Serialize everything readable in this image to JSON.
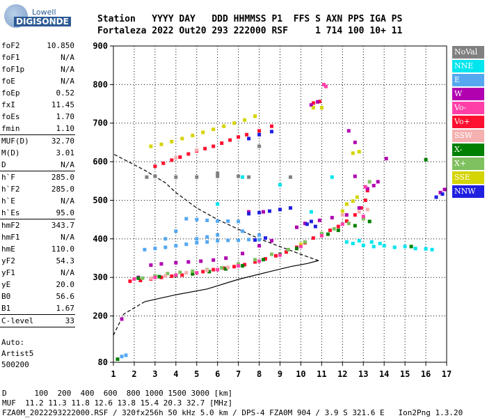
{
  "logo": {
    "line1": "Lowell",
    "line2": "DIGISONDE"
  },
  "header": {
    "row1": "Station   YYYY DAY   DDD HHMMSS P1  FFS S AXN PPS IGA PS",
    "row2": "Fortaleza 2022 Out20 293 222000 RSF     1 714 100 10+ 11"
  },
  "parameters": [
    {
      "k": "foF2",
      "v": "10.850"
    },
    {
      "k": "foF1",
      "v": "N/A"
    },
    {
      "k": "foF1p",
      "v": "N/A"
    },
    {
      "k": "foE",
      "v": "N/A"
    },
    {
      "k": "foEp",
      "v": "0.52"
    },
    {
      "k": "fxI",
      "v": "11.45"
    },
    {
      "k": "foEs",
      "v": "1.70"
    },
    {
      "k": "fmin",
      "v": "1.10",
      "sep": true
    },
    {
      "k": "MUF(D)",
      "v": "32.70"
    },
    {
      "k": "M(D)",
      "v": "3.01"
    },
    {
      "k": "D",
      "v": "N/A",
      "sep": true
    },
    {
      "k": "h`F",
      "v": "285.0"
    },
    {
      "k": "h`F2",
      "v": "285.0"
    },
    {
      "k": "h`E",
      "v": "N/A"
    },
    {
      "k": "h`Es",
      "v": "95.0",
      "sep": true
    },
    {
      "k": "hmF2",
      "v": "343.7"
    },
    {
      "k": "hmF1",
      "v": "N/A"
    },
    {
      "k": "hmE",
      "v": "110.0"
    },
    {
      "k": "yF2",
      "v": "54.3"
    },
    {
      "k": "yF1",
      "v": "N/A"
    },
    {
      "k": "yE",
      "v": "20.0"
    },
    {
      "k": "B0",
      "v": "56.6"
    },
    {
      "k": "B1",
      "v": "1.67",
      "sep": true
    },
    {
      "k": "C-level",
      "v": "33",
      "sep": true
    }
  ],
  "auto": {
    "line1": "Auto:",
    "line2": "Artist5",
    "line3": "500200"
  },
  "legend": [
    {
      "label": "NoVal",
      "bg": "#808080",
      "fg": "#ffffff"
    },
    {
      "label": "NNE",
      "bg": "#00e5ee",
      "fg": "#ffffff"
    },
    {
      "label": "E",
      "bg": "#55a8f0",
      "fg": "#ffffff"
    },
    {
      "label": "W",
      "bg": "#b000b0",
      "fg": "#ffffff"
    },
    {
      "label": "Vo-",
      "bg": "#ff3fa8",
      "fg": "#ffffff"
    },
    {
      "label": "Vo+",
      "bg": "#ff1030",
      "fg": "#ffffff"
    },
    {
      "label": "SSW",
      "bg": "#f5b0b0",
      "fg": "#ffffff"
    },
    {
      "label": "X-",
      "bg": "#008000",
      "fg": "#ffffff"
    },
    {
      "label": "X+",
      "bg": "#7fc060",
      "fg": "#ffffff"
    },
    {
      "label": "SSE",
      "bg": "#d4d400",
      "fg": "#ffffff"
    },
    {
      "label": "NNW",
      "bg": "#2020e0",
      "fg": "#ffffff"
    }
  ],
  "footer": {
    "line1": "D      100  200  400  600  800 1000 1500 3000 [km]",
    "line2": "MUF  11.2 11.3 11.8 12.6 13.8 15.4 20.3 32.7 [MHz]",
    "line3": "FZA0M_2022293222000.RSF / 320fx256h 50 kHz 5.0 km / DPS-4 FZA0M 904 / 3.9 S 321.6 E   Ion2Png 1.3.20"
  },
  "chart_data": {
    "type": "scatter",
    "xlim": [
      1,
      17
    ],
    "ylim": [
      80,
      900
    ],
    "xticks": [
      1,
      2,
      3,
      4,
      5,
      6,
      7,
      8,
      9,
      10,
      11,
      12,
      13,
      14,
      15,
      16,
      17
    ],
    "yticks": [
      80,
      200,
      300,
      400,
      500,
      600,
      700,
      800,
      900
    ],
    "xlabel": "",
    "ylabel": "",
    "profile_curve": [
      [
        0.5,
        150
      ],
      [
        1.5,
        205
      ],
      [
        2.5,
        237
      ],
      [
        4,
        255
      ],
      [
        5.5,
        270
      ],
      [
        7,
        295
      ],
      [
        8.5,
        315
      ],
      [
        9.5,
        328
      ],
      [
        10.3,
        336
      ],
      [
        10.85,
        343.7
      ],
      [
        10.5,
        350
      ],
      [
        10,
        360
      ],
      [
        9,
        380
      ],
      [
        8,
        400
      ],
      [
        7,
        425
      ],
      [
        6,
        450
      ],
      [
        5,
        480
      ],
      [
        4,
        520
      ],
      [
        3.5,
        545
      ],
      [
        2.5,
        578
      ],
      [
        1,
        620
      ]
    ],
    "series": [
      {
        "color": "#ff1030",
        "points": [
          [
            1.8,
            290
          ],
          [
            2.3,
            292
          ],
          [
            2.8,
            296
          ],
          [
            3.3,
            300
          ],
          [
            3.8,
            303
          ],
          [
            4.3,
            306
          ],
          [
            4.8,
            310
          ],
          [
            5.3,
            315
          ],
          [
            5.8,
            320
          ],
          [
            6.3,
            324
          ],
          [
            6.8,
            328
          ],
          [
            7.3,
            333
          ],
          [
            7.8,
            340
          ],
          [
            8.3,
            348
          ],
          [
            8.8,
            356
          ],
          [
            9.3,
            366
          ],
          [
            9.8,
            378
          ],
          [
            10.2,
            390
          ],
          [
            10.6,
            402
          ],
          [
            11.0,
            412
          ],
          [
            11.4,
            422
          ],
          [
            11.8,
            432
          ],
          [
            12.2,
            446
          ],
          [
            12.6,
            462
          ],
          [
            12.9,
            480
          ],
          [
            13.1,
            500
          ],
          [
            13.2,
            525
          ],
          [
            3.0,
            588
          ],
          [
            3.4,
            596
          ],
          [
            3.8,
            604
          ],
          [
            4.2,
            612
          ],
          [
            4.6,
            620
          ],
          [
            5.0,
            628
          ],
          [
            5.4,
            634
          ],
          [
            5.8,
            640
          ],
          [
            6.2,
            648
          ],
          [
            6.6,
            656
          ],
          [
            7.0,
            664
          ],
          [
            7.4,
            670
          ],
          [
            8.0,
            680
          ],
          [
            8.6,
            692
          ],
          [
            10.6,
            752
          ],
          [
            10.9,
            756
          ]
        ]
      },
      {
        "color": "#b000b0",
        "points": [
          [
            1.4,
            192
          ],
          [
            2.2,
            300
          ],
          [
            2.8,
            332
          ],
          [
            3.3,
            335
          ],
          [
            4.0,
            338
          ],
          [
            4.6,
            340
          ],
          [
            5.2,
            342
          ],
          [
            5.8,
            345
          ],
          [
            6.4,
            350
          ],
          [
            7.2,
            362
          ],
          [
            8.0,
            382
          ],
          [
            8.6,
            395
          ],
          [
            9.8,
            430
          ],
          [
            10.2,
            440
          ],
          [
            10.9,
            448
          ],
          [
            11.5,
            455
          ],
          [
            12.2,
            462
          ],
          [
            12.8,
            480
          ],
          [
            13.2,
            530
          ],
          [
            13.5,
            538
          ],
          [
            13.7,
            548
          ],
          [
            12.6,
            562
          ],
          [
            14.1,
            608
          ],
          [
            16.7,
            520
          ],
          [
            16.9,
            528
          ],
          [
            10.5,
            747
          ],
          [
            10.8,
            755
          ],
          [
            12.3,
            680
          ],
          [
            12.6,
            650
          ],
          [
            7.5,
            470
          ],
          [
            8.2,
            470
          ]
        ]
      },
      {
        "color": "#55a8f0",
        "points": [
          [
            2.5,
            372
          ],
          [
            3.0,
            375
          ],
          [
            3.5,
            378
          ],
          [
            4.0,
            382
          ],
          [
            4.5,
            386
          ],
          [
            5.0,
            390
          ],
          [
            5.5,
            392
          ],
          [
            6.0,
            395
          ],
          [
            6.5,
            396
          ],
          [
            7.0,
            396
          ],
          [
            7.5,
            398
          ],
          [
            8.0,
            398
          ],
          [
            4.5,
            452
          ],
          [
            5.0,
            450
          ],
          [
            5.5,
            448
          ],
          [
            6.0,
            446
          ],
          [
            6.5,
            446
          ],
          [
            7.0,
            445
          ],
          [
            5.0,
            400
          ],
          [
            5.5,
            405
          ],
          [
            6.0,
            410
          ],
          [
            7.2,
            420
          ],
          [
            1.4,
            95
          ],
          [
            1.6,
            98
          ],
          [
            8.0,
            410
          ],
          [
            4.0,
            420
          ],
          [
            3.5,
            400
          ]
        ]
      },
      {
        "color": "#00e5ee",
        "points": [
          [
            12.5,
            388
          ],
          [
            13.0,
            383
          ],
          [
            13.5,
            380
          ],
          [
            14.0,
            382
          ],
          [
            14.5,
            378
          ],
          [
            15.0,
            380
          ],
          [
            15.5,
            375
          ],
          [
            16.0,
            374
          ],
          [
            16.3,
            372
          ],
          [
            12.8,
            395
          ],
          [
            13.4,
            392
          ],
          [
            13.8,
            388
          ],
          [
            12.2,
            392
          ],
          [
            7.2,
            560
          ],
          [
            9.0,
            540
          ],
          [
            11.5,
            560
          ],
          [
            10.5,
            470
          ],
          [
            6.0,
            490
          ]
        ]
      },
      {
        "color": "#2020e0",
        "points": [
          [
            7.5,
            465
          ],
          [
            8.0,
            468
          ],
          [
            8.5,
            472
          ],
          [
            9.0,
            476
          ],
          [
            9.5,
            480
          ],
          [
            7.8,
            397
          ],
          [
            8.3,
            402
          ],
          [
            10.3,
            438
          ],
          [
            10.5,
            445
          ],
          [
            10.7,
            432
          ],
          [
            16.5,
            508
          ],
          [
            16.8,
            516
          ],
          [
            7.5,
            660
          ],
          [
            8.0,
            670
          ],
          [
            8.6,
            678
          ]
        ]
      },
      {
        "color": "#008000",
        "points": [
          [
            1.2,
            88
          ],
          [
            2.2,
            298
          ],
          [
            3.2,
            302
          ],
          [
            4.0,
            305
          ],
          [
            4.8,
            309
          ],
          [
            5.6,
            315
          ],
          [
            6.4,
            322
          ],
          [
            7.2,
            330
          ],
          [
            8.2,
            346
          ],
          [
            9.0,
            360
          ],
          [
            9.8,
            375
          ],
          [
            11.3,
            412
          ],
          [
            11.8,
            422
          ],
          [
            12.6,
            434
          ],
          [
            13.3,
            445
          ],
          [
            15.3,
            380
          ],
          [
            16.0,
            605
          ]
        ]
      },
      {
        "color": "#7fc060",
        "points": [
          [
            2.4,
            298
          ],
          [
            3.0,
            304
          ],
          [
            3.6,
            310
          ],
          [
            4.2,
            313
          ],
          [
            4.8,
            316
          ],
          [
            5.5,
            320
          ],
          [
            6.2,
            325
          ],
          [
            7.0,
            335
          ],
          [
            7.8,
            346
          ],
          [
            8.6,
            360
          ],
          [
            9.4,
            372
          ],
          [
            10.2,
            392
          ],
          [
            11.0,
            414
          ],
          [
            11.6,
            426
          ],
          [
            12.3,
            440
          ],
          [
            13.0,
            452
          ],
          [
            13.3,
            548
          ]
        ]
      },
      {
        "color": "#d4d400",
        "points": [
          [
            2.8,
            640
          ],
          [
            3.3,
            645
          ],
          [
            3.8,
            652
          ],
          [
            4.3,
            660
          ],
          [
            4.8,
            668
          ],
          [
            5.3,
            676
          ],
          [
            5.8,
            684
          ],
          [
            6.3,
            692
          ],
          [
            6.8,
            700
          ],
          [
            7.3,
            708
          ],
          [
            7.8,
            718
          ],
          [
            12.2,
            490
          ],
          [
            12.5,
            498
          ],
          [
            12.7,
            508
          ],
          [
            12.5,
            622
          ],
          [
            12.8,
            626
          ],
          [
            10.6,
            740
          ],
          [
            11.0,
            740
          ],
          [
            12.0,
            472
          ],
          [
            10.0,
            386
          ]
        ]
      },
      {
        "color": "#f5b0b0",
        "points": [
          [
            2.8,
            298
          ],
          [
            3.5,
            304
          ],
          [
            4.5,
            312
          ],
          [
            5.5,
            318
          ],
          [
            6.5,
            326
          ],
          [
            12.0,
            462
          ],
          [
            12.8,
            470
          ],
          [
            13.2,
            476
          ],
          [
            4.0,
            610
          ],
          [
            5.0,
            630
          ]
        ]
      },
      {
        "color": "#ff3fa8",
        "points": [
          [
            2.0,
            296
          ],
          [
            3.0,
            300
          ],
          [
            4.0,
            306
          ],
          [
            5.0,
            312
          ],
          [
            6.0,
            320
          ],
          [
            7.0,
            330
          ],
          [
            8.0,
            342
          ],
          [
            9.0,
            358
          ],
          [
            10.0,
            380
          ],
          [
            11.0,
            408
          ],
          [
            12.0,
            438
          ],
          [
            13.0,
            458
          ],
          [
            11.1,
            800
          ],
          [
            11.2,
            795
          ],
          [
            13.1,
            535
          ]
        ]
      },
      {
        "color": "#808080",
        "points": [
          [
            2.6,
            560
          ],
          [
            3.0,
            562
          ],
          [
            4.0,
            560
          ],
          [
            5.0,
            560
          ],
          [
            6.0,
            562
          ],
          [
            7.0,
            562
          ],
          [
            7.5,
            560
          ],
          [
            8.0,
            640
          ],
          [
            6.0,
            570
          ],
          [
            9.5,
            560
          ]
        ]
      }
    ]
  }
}
